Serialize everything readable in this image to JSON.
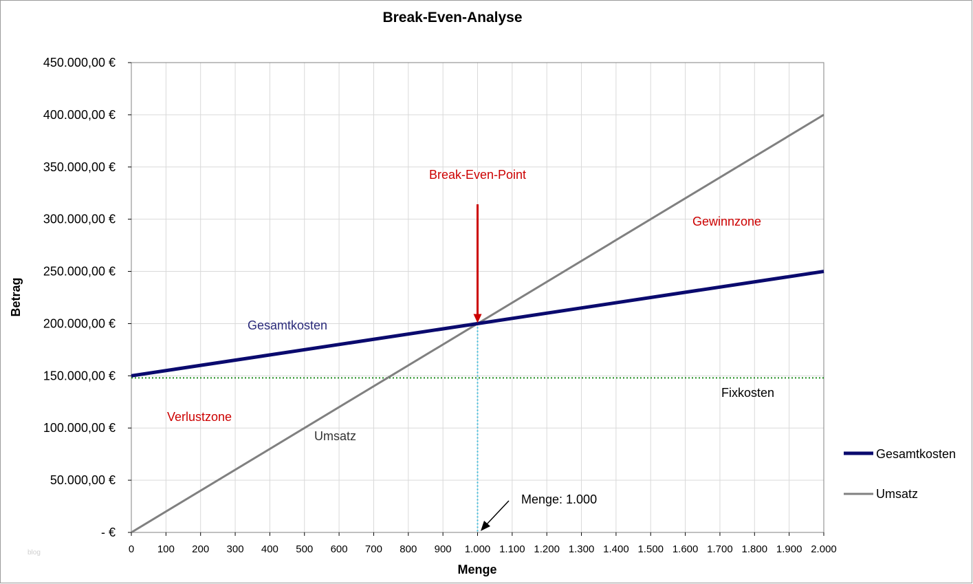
{
  "chart_data": {
    "type": "line",
    "title": "Break-Even-Analyse",
    "xlabel": "Menge",
    "ylabel": "Betrag",
    "xlim": [
      0,
      2000
    ],
    "ylim": [
      0,
      450000
    ],
    "x_ticks": [
      0,
      100,
      200,
      300,
      400,
      500,
      600,
      700,
      800,
      900,
      1000,
      1100,
      1200,
      1300,
      1400,
      1500,
      1600,
      1700,
      1800,
      1900,
      2000
    ],
    "x_tick_labels": [
      "0",
      "100",
      "200",
      "300",
      "400",
      "500",
      "600",
      "700",
      "800",
      "900",
      "1.000",
      "1.100",
      "1.200",
      "1.300",
      "1.400",
      "1.500",
      "1.600",
      "1.700",
      "1.800",
      "1.900",
      "2.000"
    ],
    "y_ticks": [
      0,
      50000,
      100000,
      150000,
      200000,
      250000,
      300000,
      350000,
      400000,
      450000
    ],
    "y_tick_labels": [
      "-   €",
      "50.000,00 €",
      "100.000,00 €",
      "150.000,00 €",
      "200.000,00 €",
      "250.000,00 €",
      "300.000,00 €",
      "350.000,00 €",
      "400.000,00 €",
      "450.000,00 €"
    ],
    "grid": true,
    "legend_position": "right",
    "series": [
      {
        "name": "Gesamtkosten",
        "color": "#0a0a6e",
        "x": [
          0,
          2000
        ],
        "y": [
          150000,
          250000
        ]
      },
      {
        "name": "Umsatz",
        "color": "#808080",
        "x": [
          0,
          2000
        ],
        "y": [
          0,
          400000
        ]
      }
    ],
    "fixkosten": {
      "y": 148000,
      "color": "#1a8a1a"
    },
    "break_even": {
      "x": 1000,
      "y": 200000
    },
    "annotations": {
      "break_even_label": "Break-Even-Point",
      "menge_label": "Menge: 1.000",
      "gesamtkosten_label": "Gesamtkosten",
      "umsatz_label": "Umsatz",
      "fixkosten_label": "Fixkosten",
      "gewinnzone_label": "Gewinnzone",
      "verlustzone_label": "Verlustzone"
    },
    "colors": {
      "annotation_red": "#cc0000",
      "annotation_blue": "#2a2a7a",
      "vertical_marker": "#33bbdd"
    }
  },
  "watermark": "blog"
}
